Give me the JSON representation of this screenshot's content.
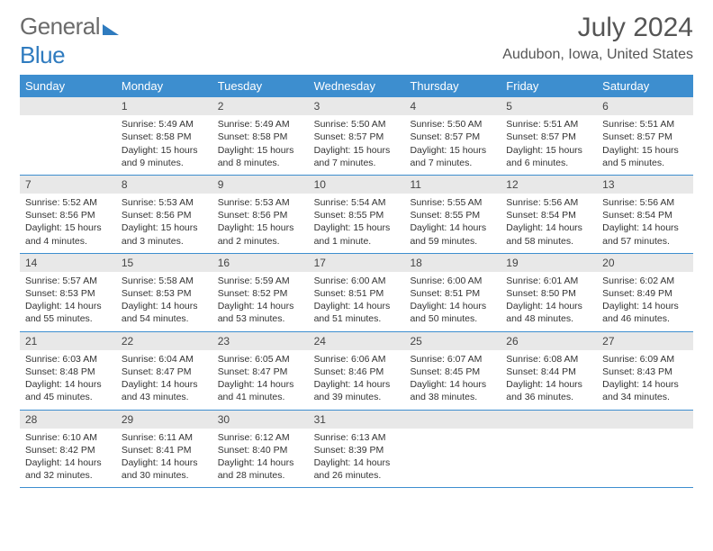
{
  "logo": {
    "text1": "General",
    "text2": "Blue"
  },
  "title": "July 2024",
  "location": "Audubon, Iowa, United States",
  "weekdays": [
    "Sunday",
    "Monday",
    "Tuesday",
    "Wednesday",
    "Thursday",
    "Friday",
    "Saturday"
  ],
  "colors": {
    "header_bg": "#3d8ecf",
    "header_text": "#ffffff",
    "daynum_bg": "#e8e8e8",
    "border": "#3d8ecf",
    "logo_gray": "#6b6b6b",
    "logo_blue": "#2f7bbf"
  },
  "grid_start_weekday": 1,
  "days": [
    {
      "n": 1,
      "sunrise": "5:49 AM",
      "sunset": "8:58 PM",
      "daylight": "15 hours and 9 minutes."
    },
    {
      "n": 2,
      "sunrise": "5:49 AM",
      "sunset": "8:58 PM",
      "daylight": "15 hours and 8 minutes."
    },
    {
      "n": 3,
      "sunrise": "5:50 AM",
      "sunset": "8:57 PM",
      "daylight": "15 hours and 7 minutes."
    },
    {
      "n": 4,
      "sunrise": "5:50 AM",
      "sunset": "8:57 PM",
      "daylight": "15 hours and 7 minutes."
    },
    {
      "n": 5,
      "sunrise": "5:51 AM",
      "sunset": "8:57 PM",
      "daylight": "15 hours and 6 minutes."
    },
    {
      "n": 6,
      "sunrise": "5:51 AM",
      "sunset": "8:57 PM",
      "daylight": "15 hours and 5 minutes."
    },
    {
      "n": 7,
      "sunrise": "5:52 AM",
      "sunset": "8:56 PM",
      "daylight": "15 hours and 4 minutes."
    },
    {
      "n": 8,
      "sunrise": "5:53 AM",
      "sunset": "8:56 PM",
      "daylight": "15 hours and 3 minutes."
    },
    {
      "n": 9,
      "sunrise": "5:53 AM",
      "sunset": "8:56 PM",
      "daylight": "15 hours and 2 minutes."
    },
    {
      "n": 10,
      "sunrise": "5:54 AM",
      "sunset": "8:55 PM",
      "daylight": "15 hours and 1 minute."
    },
    {
      "n": 11,
      "sunrise": "5:55 AM",
      "sunset": "8:55 PM",
      "daylight": "14 hours and 59 minutes."
    },
    {
      "n": 12,
      "sunrise": "5:56 AM",
      "sunset": "8:54 PM",
      "daylight": "14 hours and 58 minutes."
    },
    {
      "n": 13,
      "sunrise": "5:56 AM",
      "sunset": "8:54 PM",
      "daylight": "14 hours and 57 minutes."
    },
    {
      "n": 14,
      "sunrise": "5:57 AM",
      "sunset": "8:53 PM",
      "daylight": "14 hours and 55 minutes."
    },
    {
      "n": 15,
      "sunrise": "5:58 AM",
      "sunset": "8:53 PM",
      "daylight": "14 hours and 54 minutes."
    },
    {
      "n": 16,
      "sunrise": "5:59 AM",
      "sunset": "8:52 PM",
      "daylight": "14 hours and 53 minutes."
    },
    {
      "n": 17,
      "sunrise": "6:00 AM",
      "sunset": "8:51 PM",
      "daylight": "14 hours and 51 minutes."
    },
    {
      "n": 18,
      "sunrise": "6:00 AM",
      "sunset": "8:51 PM",
      "daylight": "14 hours and 50 minutes."
    },
    {
      "n": 19,
      "sunrise": "6:01 AM",
      "sunset": "8:50 PM",
      "daylight": "14 hours and 48 minutes."
    },
    {
      "n": 20,
      "sunrise": "6:02 AM",
      "sunset": "8:49 PM",
      "daylight": "14 hours and 46 minutes."
    },
    {
      "n": 21,
      "sunrise": "6:03 AM",
      "sunset": "8:48 PM",
      "daylight": "14 hours and 45 minutes."
    },
    {
      "n": 22,
      "sunrise": "6:04 AM",
      "sunset": "8:47 PM",
      "daylight": "14 hours and 43 minutes."
    },
    {
      "n": 23,
      "sunrise": "6:05 AM",
      "sunset": "8:47 PM",
      "daylight": "14 hours and 41 minutes."
    },
    {
      "n": 24,
      "sunrise": "6:06 AM",
      "sunset": "8:46 PM",
      "daylight": "14 hours and 39 minutes."
    },
    {
      "n": 25,
      "sunrise": "6:07 AM",
      "sunset": "8:45 PM",
      "daylight": "14 hours and 38 minutes."
    },
    {
      "n": 26,
      "sunrise": "6:08 AM",
      "sunset": "8:44 PM",
      "daylight": "14 hours and 36 minutes."
    },
    {
      "n": 27,
      "sunrise": "6:09 AM",
      "sunset": "8:43 PM",
      "daylight": "14 hours and 34 minutes."
    },
    {
      "n": 28,
      "sunrise": "6:10 AM",
      "sunset": "8:42 PM",
      "daylight": "14 hours and 32 minutes."
    },
    {
      "n": 29,
      "sunrise": "6:11 AM",
      "sunset": "8:41 PM",
      "daylight": "14 hours and 30 minutes."
    },
    {
      "n": 30,
      "sunrise": "6:12 AM",
      "sunset": "8:40 PM",
      "daylight": "14 hours and 28 minutes."
    },
    {
      "n": 31,
      "sunrise": "6:13 AM",
      "sunset": "8:39 PM",
      "daylight": "14 hours and 26 minutes."
    }
  ],
  "labels": {
    "sunrise": "Sunrise:",
    "sunset": "Sunset:",
    "daylight": "Daylight:"
  }
}
